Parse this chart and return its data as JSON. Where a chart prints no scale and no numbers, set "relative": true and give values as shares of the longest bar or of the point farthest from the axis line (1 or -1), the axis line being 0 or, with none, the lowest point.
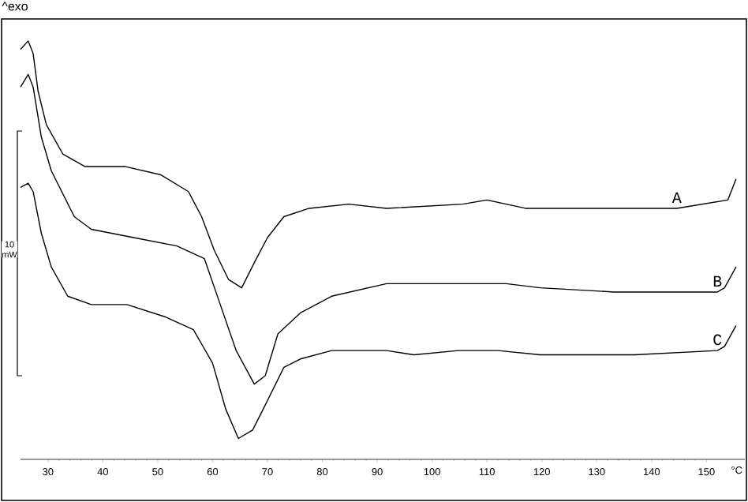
{
  "chart_data": {
    "type": "line",
    "relative": true,
    "xlabel": "°C",
    "xlim": [
      25,
      157
    ],
    "xticks": [
      30,
      40,
      50,
      60,
      70,
      80,
      90,
      100,
      110,
      120,
      130,
      140,
      150
    ],
    "marker": "none",
    "line_style": "solid",
    "annotations": [
      "^exo",
      "10 mW"
    ],
    "series": [
      {
        "name": "A",
        "color": "#000000",
        "x": [
          25,
          26.4,
          27.3,
          28.2,
          29.7,
          32.7,
          36.7,
          44,
          50.6,
          55.6,
          58,
          60.3,
          62.9,
          65.3,
          67.6,
          70,
          73,
          77.6,
          84.8,
          91.7,
          105.6,
          110,
          117,
          144.6,
          153.9,
          155.4
        ],
        "values": [
          0.98,
          1.0,
          0.97,
          0.88,
          0.8,
          0.73,
          0.7,
          0.7,
          0.68,
          0.64,
          0.58,
          0.5,
          0.43,
          0.41,
          0.47,
          0.53,
          0.58,
          0.6,
          0.61,
          0.6,
          0.61,
          0.62,
          0.6,
          0.6,
          0.62,
          0.67
        ]
      },
      {
        "name": "B",
        "color": "#000000",
        "x": [
          25,
          26.4,
          27.3,
          28.8,
          30.6,
          34.8,
          37.9,
          45.6,
          53.5,
          58.5,
          61.4,
          64.3,
          67.6,
          69.6,
          71.9,
          76,
          81.7,
          91.7,
          94.4,
          105.6,
          113.5,
          119.7,
          133.2,
          152,
          153.3,
          155.4
        ],
        "values": [
          0.89,
          0.92,
          0.89,
          0.77,
          0.69,
          0.58,
          0.55,
          0.53,
          0.51,
          0.48,
          0.37,
          0.26,
          0.18,
          0.2,
          0.3,
          0.35,
          0.39,
          0.42,
          0.42,
          0.42,
          0.42,
          0.41,
          0.4,
          0.4,
          0.41,
          0.46
        ]
      },
      {
        "name": "C",
        "color": "#000000",
        "x": [
          25,
          26.4,
          27.3,
          28.8,
          30.6,
          33.6,
          37.9,
          44.4,
          51.5,
          56.5,
          60,
          62.4,
          64.7,
          67.3,
          69.6,
          73,
          76,
          81.7,
          91.7,
          96.7,
          104.8,
          112,
          119.7,
          125.4,
          136.9,
          152,
          153.3,
          155.4
        ],
        "values": [
          0.65,
          0.66,
          0.64,
          0.54,
          0.46,
          0.39,
          0.37,
          0.37,
          0.34,
          0.31,
          0.23,
          0.12,
          0.05,
          0.07,
          0.13,
          0.22,
          0.24,
          0.26,
          0.26,
          0.25,
          0.26,
          0.26,
          0.25,
          0.25,
          0.25,
          0.26,
          0.27,
          0.32
        ]
      }
    ]
  }
}
